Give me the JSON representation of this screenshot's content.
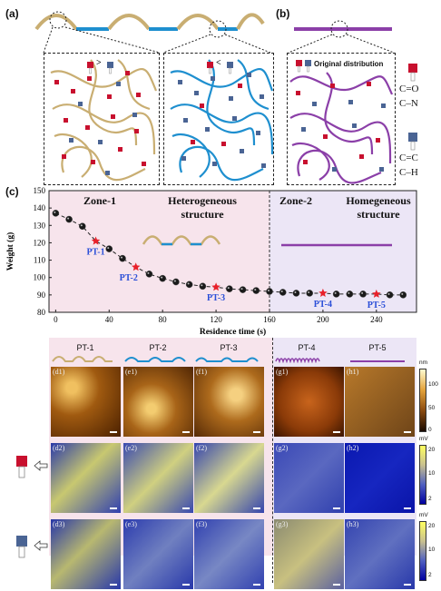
{
  "panels": {
    "a": "(a)",
    "b": "(b)",
    "c": "(c)"
  },
  "panel_a": {
    "left_comparison": ">",
    "right_comparison": "<"
  },
  "panel_b": {
    "box_title": "Original distribution"
  },
  "legend": {
    "red_group": [
      "C=O",
      "C–N"
    ],
    "blue_group": [
      "C=C",
      "C–H"
    ]
  },
  "colors": {
    "tan": "#C9AE72",
    "blue": "#1E8FCF",
    "purple": "#8B3FA8",
    "red_group": "#C8102E",
    "blue_group": "#4A6494",
    "zone1_bg": "#F7E4EC",
    "zone2_bg": "#ECE6F6",
    "label_blue": "#2B4FD8",
    "star": "#E8202A"
  },
  "chart": {
    "zone1": "Zone-1",
    "zone2": "Zone-2",
    "hetero": [
      "Heterogeneous",
      "structure"
    ],
    "homo": [
      "Homegeneous",
      "structure"
    ]
  },
  "chart_data": {
    "type": "scatter",
    "xlabel": "Residence time (s)",
    "ylabel": "Weight (g)",
    "xlim": [
      -5,
      270
    ],
    "ylim": [
      80,
      150
    ],
    "xticks": [
      0,
      40,
      80,
      120,
      160,
      200,
      240
    ],
    "yticks": [
      80,
      90,
      100,
      110,
      120,
      130,
      140,
      150
    ],
    "zone_boundary_x": 160,
    "points": [
      {
        "x": 0,
        "y": 137.0
      },
      {
        "x": 10,
        "y": 133.5
      },
      {
        "x": 20,
        "y": 129.5
      },
      {
        "x": 40,
        "y": 116.5
      },
      {
        "x": 50,
        "y": 111.0
      },
      {
        "x": 70,
        "y": 102.0
      },
      {
        "x": 80,
        "y": 99.5
      },
      {
        "x": 90,
        "y": 97.5
      },
      {
        "x": 100,
        "y": 96.0
      },
      {
        "x": 110,
        "y": 95.0
      },
      {
        "x": 130,
        "y": 93.5
      },
      {
        "x": 140,
        "y": 93.0
      },
      {
        "x": 150,
        "y": 92.5
      },
      {
        "x": 160,
        "y": 92.0
      },
      {
        "x": 170,
        "y": 91.5
      },
      {
        "x": 180,
        "y": 91.0
      },
      {
        "x": 190,
        "y": 91.0
      },
      {
        "x": 210,
        "y": 90.5
      },
      {
        "x": 220,
        "y": 90.5
      },
      {
        "x": 230,
        "y": 90.5
      },
      {
        "x": 250,
        "y": 90.0
      },
      {
        "x": 260,
        "y": 90.0
      }
    ],
    "star_points": [
      {
        "label": "PT-1",
        "x": 30,
        "y": 121.0
      },
      {
        "label": "PT-2",
        "x": 60,
        "y": 106.0
      },
      {
        "label": "PT-3",
        "x": 120,
        "y": 94.5
      },
      {
        "label": "PT-4",
        "x": 200,
        "y": 91.0
      },
      {
        "label": "PT-5",
        "x": 240,
        "y": 90.5
      }
    ]
  },
  "grid": {
    "columns": [
      "PT-1",
      "PT-2",
      "PT-3",
      "PT-4",
      "PT-5"
    ],
    "rows": [
      [
        "(d1)",
        "(e1)",
        "(f1)",
        "(g1)",
        "(h1)"
      ],
      [
        "(d2)",
        "(e2)",
        "(f2)",
        "(g2)",
        "(h2)"
      ],
      [
        "(d3)",
        "(e3)",
        "(f3)",
        "(g3)",
        "(h3)"
      ]
    ],
    "colorbar_height": {
      "unit": "nm",
      "ticks": [
        "100",
        "50",
        "0"
      ]
    },
    "colorbar_mv_1": {
      "unit": "mV",
      "ticks": [
        "20",
        "10",
        "2"
      ]
    },
    "colorbar_mv_2": {
      "unit": "mV",
      "ticks": [
        "20",
        "10",
        "2"
      ]
    }
  }
}
